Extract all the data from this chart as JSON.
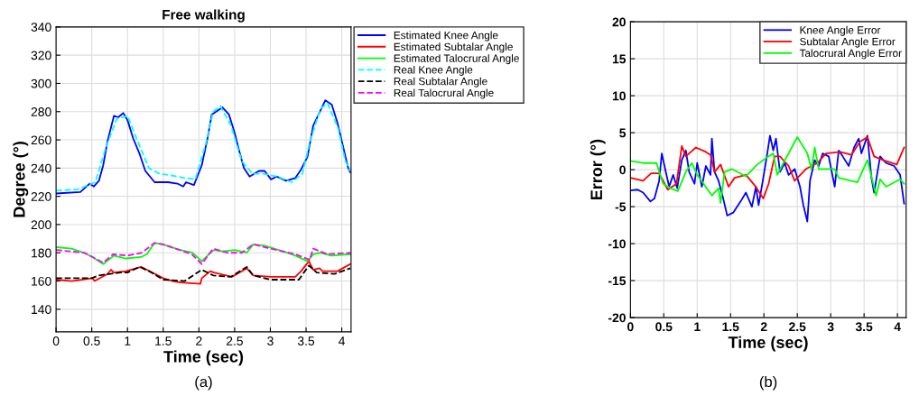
{
  "chart_data": [
    {
      "type": "line",
      "title": "Free walking",
      "xlabel": "Time (sec)",
      "ylabel": "Degree (°)",
      "xlim": [
        0,
        4.13
      ],
      "ylim": [
        124,
        340
      ],
      "xticks": [
        0,
        0.5,
        1,
        1.5,
        2,
        2.5,
        3,
        3.5,
        4
      ],
      "yticks": [
        140,
        160,
        180,
        200,
        220,
        240,
        260,
        280,
        300,
        320,
        340
      ],
      "grid": true,
      "legend": "right",
      "annotations": [
        "(a)"
      ],
      "series": [
        {
          "name": "Estimated Knee Angle",
          "color": "#0000ff",
          "line_style": "solid",
          "x": [
            0,
            0.34,
            0.47,
            0.53,
            0.6,
            0.66,
            0.72,
            0.81,
            0.87,
            0.94,
            1.0,
            1.08,
            1.17,
            1.25,
            1.38,
            1.57,
            1.7,
            1.78,
            1.82,
            1.93,
            2.04,
            2.12,
            2.18,
            2.33,
            2.42,
            2.5,
            2.56,
            2.63,
            2.71,
            2.84,
            2.92,
            3.01,
            3.09,
            3.22,
            3.35,
            3.43,
            3.52,
            3.6,
            3.77,
            3.86,
            3.94,
            4.02,
            4.09,
            4.12
          ],
          "values": [
            222,
            223,
            229,
            227,
            231,
            242,
            259,
            277,
            276,
            279,
            274,
            261,
            250,
            238,
            230,
            230,
            229,
            227,
            230,
            228,
            242,
            261,
            278,
            283,
            278,
            265,
            253,
            240,
            234,
            238,
            238,
            232,
            234,
            231,
            233,
            239,
            248,
            270,
            288,
            285,
            272,
            255,
            240,
            237
          ]
        },
        {
          "name": "Estimated Subtalar Angle",
          "color": "#ff0000",
          "line_style": "solid",
          "x": [
            0,
            0.22,
            0.51,
            0.54,
            0.72,
            0.77,
            0.81,
            0.98,
            1.19,
            1.27,
            1.5,
            1.63,
            1.74,
            2.02,
            2.04,
            2.16,
            2.21,
            2.46,
            2.67,
            2.76,
            3.01,
            3.35,
            3.43,
            3.54,
            3.6,
            3.69,
            3.73,
            3.94,
            4.12
          ],
          "values": [
            161,
            160,
            162,
            160,
            165,
            168,
            166,
            167,
            170,
            168,
            162,
            160,
            159,
            158,
            162,
            167,
            166,
            163,
            169,
            164,
            163,
            163,
            167,
            174,
            168,
            169,
            167,
            167,
            172
          ]
        },
        {
          "name": "Estimated Talocrural Angle",
          "color": "#00ff00",
          "line_style": "solid",
          "x": [
            0,
            0.22,
            0.39,
            0.51,
            0.66,
            0.81,
            0.98,
            1.19,
            1.27,
            1.38,
            1.49,
            1.74,
            1.91,
            2.04,
            2.14,
            2.21,
            2.33,
            2.5,
            2.67,
            2.76,
            2.92,
            3.18,
            3.35,
            3.52,
            3.6,
            3.69,
            3.85,
            4.12
          ],
          "values": [
            184,
            183,
            180,
            177,
            172,
            178,
            176,
            177,
            179,
            187,
            186,
            182,
            180,
            174,
            179,
            182,
            181,
            182,
            180,
            186,
            185,
            181,
            178,
            174,
            179,
            180,
            178,
            179
          ]
        },
        {
          "name": "Real Knee Angle",
          "color": "#00ffff",
          "line_style": "dashed",
          "x": [
            0,
            0.3,
            0.55,
            0.7,
            0.85,
            1.0,
            1.15,
            1.3,
            1.45,
            1.6,
            1.8,
            1.95,
            2.1,
            2.2,
            2.3,
            2.45,
            2.6,
            2.75,
            2.9,
            3.1,
            3.3,
            3.45,
            3.55,
            3.7,
            3.8,
            3.95,
            4.05,
            4.12
          ],
          "values": [
            224,
            225,
            230,
            255,
            275,
            277,
            258,
            240,
            236,
            235,
            233,
            232,
            258,
            280,
            284,
            270,
            245,
            236,
            236,
            234,
            230,
            236,
            258,
            282,
            286,
            268,
            245,
            238
          ]
        },
        {
          "name": "Real Subtalar Angle",
          "color": "#000000",
          "line_style": "dashed",
          "x": [
            0,
            0.5,
            0.6,
            0.9,
            1.0,
            1.17,
            1.3,
            1.5,
            1.8,
            2.04,
            2.2,
            2.45,
            2.67,
            2.76,
            3.0,
            3.4,
            3.54,
            3.65,
            3.9,
            4.12
          ],
          "values": [
            162,
            162,
            164,
            166,
            166,
            170,
            167,
            161,
            160,
            168,
            164,
            163,
            170,
            164,
            161,
            161,
            171,
            166,
            165,
            169
          ]
        },
        {
          "name": "Real Talocrural Angle",
          "color": "#ff00ff",
          "line_style": "dashed",
          "x": [
            0,
            0.4,
            0.66,
            0.8,
            1.0,
            1.2,
            1.38,
            1.5,
            1.9,
            2.04,
            2.2,
            2.4,
            2.6,
            2.76,
            3.0,
            3.35,
            3.55,
            3.6,
            3.8,
            4.12
          ],
          "values": [
            182,
            180,
            173,
            179,
            178,
            180,
            187,
            186,
            179,
            172,
            183,
            180,
            180,
            186,
            183,
            179,
            175,
            183,
            179,
            180
          ]
        }
      ]
    },
    {
      "type": "line",
      "xlabel": "Time (sec)",
      "ylabel": "Error (°)",
      "xlim": [
        0,
        4.13
      ],
      "ylim": [
        -20,
        20
      ],
      "xticks": [
        0,
        0.5,
        1,
        1.5,
        2,
        2.5,
        3,
        3.5,
        4
      ],
      "yticks": [
        -20,
        -15,
        -10,
        -5,
        0,
        5,
        10,
        15,
        20
      ],
      "grid": true,
      "legend": "top right",
      "annotations": [
        "(b)"
      ],
      "series": [
        {
          "name": "Knee Angle Error",
          "color": "#0000ff",
          "line_style": "solid",
          "x": [
            0,
            0.107,
            0.19,
            0.3,
            0.36,
            0.43,
            0.47,
            0.51,
            0.58,
            0.64,
            0.7,
            0.77,
            0.83,
            0.88,
            0.96,
            1.0,
            1.07,
            1.13,
            1.2,
            1.22,
            1.26,
            1.32,
            1.39,
            1.45,
            1.54,
            1.65,
            1.73,
            1.82,
            1.88,
            1.92,
            1.99,
            2.05,
            2.09,
            2.14,
            2.18,
            2.24,
            2.31,
            2.37,
            2.46,
            2.54,
            2.59,
            2.65,
            2.69,
            2.76,
            2.82,
            2.88,
            2.97,
            3.06,
            3.12,
            3.18,
            3.27,
            3.35,
            3.42,
            3.46,
            3.55,
            3.61,
            3.65,
            3.74,
            3.83,
            3.95,
            4.04,
            4.1
          ],
          "values": [
            -2.8,
            -2.7,
            -3.1,
            -4.3,
            -3.9,
            -1.5,
            2.2,
            0.5,
            -2.3,
            -0.7,
            -2.5,
            1.3,
            2.6,
            -0.3,
            -1.9,
            0.9,
            -2.3,
            0.5,
            -0.7,
            4.2,
            -0.3,
            -1.5,
            -3.9,
            -6.2,
            -5.8,
            -4.3,
            -3.1,
            -5.0,
            -2.3,
            -4.8,
            -1.1,
            2.2,
            4.6,
            2.6,
            4.2,
            -0.3,
            0.9,
            -0.7,
            0.1,
            -2.3,
            -4.8,
            -7.0,
            -1.5,
            1.3,
            0.5,
            2.2,
            1.8,
            -2.3,
            2.6,
            1.8,
            0.5,
            3.0,
            4.2,
            2.2,
            4.6,
            -1.1,
            -3.1,
            1.8,
            0.9,
            0.5,
            -0.7,
            -4.6
          ]
        },
        {
          "name": "Subtalar Angle Error",
          "color": "#ff0000",
          "line_style": "solid",
          "x": [
            0,
            0.19,
            0.31,
            0.43,
            0.56,
            0.69,
            0.77,
            0.83,
            0.98,
            1.13,
            1.2,
            1.26,
            1.35,
            1.47,
            1.56,
            1.73,
            1.86,
            1.99,
            2.07,
            2.16,
            2.24,
            2.37,
            2.46,
            2.63,
            2.8,
            2.93,
            3.14,
            3.31,
            3.44,
            3.55,
            3.65,
            3.78,
            3.99,
            4.1
          ],
          "values": [
            -1.1,
            -1.5,
            -0.5,
            -0.5,
            -2.7,
            -1.9,
            3.2,
            1.8,
            3.0,
            2.4,
            2.0,
            -0.3,
            0.7,
            -2.3,
            -1.1,
            -0.7,
            -2.1,
            -3.9,
            -1.9,
            1.8,
            1.8,
            0.5,
            -1.5,
            0.1,
            0.9,
            2.2,
            2.4,
            2.0,
            3.8,
            4.4,
            1.8,
            1.3,
            0.7,
            3.0
          ]
        },
        {
          "name": "Talocrural Angle Error",
          "color": "#00ff00",
          "line_style": "solid",
          "x": [
            0,
            0.19,
            0.39,
            0.49,
            0.6,
            0.71,
            0.83,
            0.92,
            1.0,
            1.22,
            1.32,
            1.35,
            1.41,
            1.52,
            1.73,
            1.9,
            2.07,
            2.14,
            2.2,
            2.29,
            2.5,
            2.65,
            2.71,
            2.76,
            2.82,
            3.06,
            3.12,
            3.4,
            3.55,
            3.68,
            3.74,
            3.83,
            4.04,
            4.1
          ],
          "values": [
            1.2,
            0.9,
            0.9,
            -1.9,
            -2.5,
            -2.9,
            -0.3,
            0.9,
            -0.7,
            -3.5,
            -2.5,
            -4.5,
            -0.3,
            0.1,
            -0.9,
            0.7,
            1.8,
            2.2,
            -0.7,
            0.9,
            4.4,
            2.2,
            0.1,
            3.0,
            0.1,
            0.1,
            -1.1,
            -1.7,
            1.3,
            -3.5,
            -1.3,
            -2.3,
            -1.3,
            -1.9
          ]
        }
      ]
    }
  ]
}
